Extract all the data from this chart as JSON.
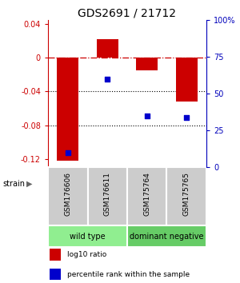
{
  "title": "GDS2691 / 21712",
  "samples": [
    "GSM176606",
    "GSM176611",
    "GSM175764",
    "GSM175765"
  ],
  "log10_ratio": [
    -0.122,
    0.022,
    -0.015,
    -0.052
  ],
  "percentile_rank": [
    10,
    60,
    35,
    34
  ],
  "bar_color": "#cc0000",
  "dot_color": "#0000cc",
  "ylim_left": [
    -0.13,
    0.045
  ],
  "ylim_right": [
    0,
    100
  ],
  "yticks_left": [
    0.04,
    0.0,
    -0.04,
    -0.08,
    -0.12
  ],
  "yticks_right": [
    100,
    75,
    50,
    25,
    0
  ],
  "ytick_labels_left": [
    "0.04",
    "0",
    "-0.04",
    "-0.08",
    "-0.12"
  ],
  "ytick_labels_right": [
    "100%",
    "75",
    "50",
    "25",
    "0"
  ],
  "hline_y": 0,
  "dotted_lines": [
    -0.04,
    -0.08
  ],
  "groups": [
    {
      "label": "wild type",
      "indices": [
        0,
        1
      ],
      "color": "#90ee90"
    },
    {
      "label": "dominant negative",
      "indices": [
        2,
        3
      ],
      "color": "#66cc66"
    }
  ],
  "strain_label": "strain",
  "legend": [
    {
      "color": "#cc0000",
      "label": "log10 ratio"
    },
    {
      "color": "#0000cc",
      "label": "percentile rank within the sample"
    }
  ],
  "background_color": "#ffffff",
  "plot_bg": "#ffffff",
  "title_fontsize": 10,
  "axis_label_color_left": "#cc0000",
  "axis_label_color_right": "#0000bb",
  "sample_label_bg": "#cccccc",
  "bar_width": 0.55
}
